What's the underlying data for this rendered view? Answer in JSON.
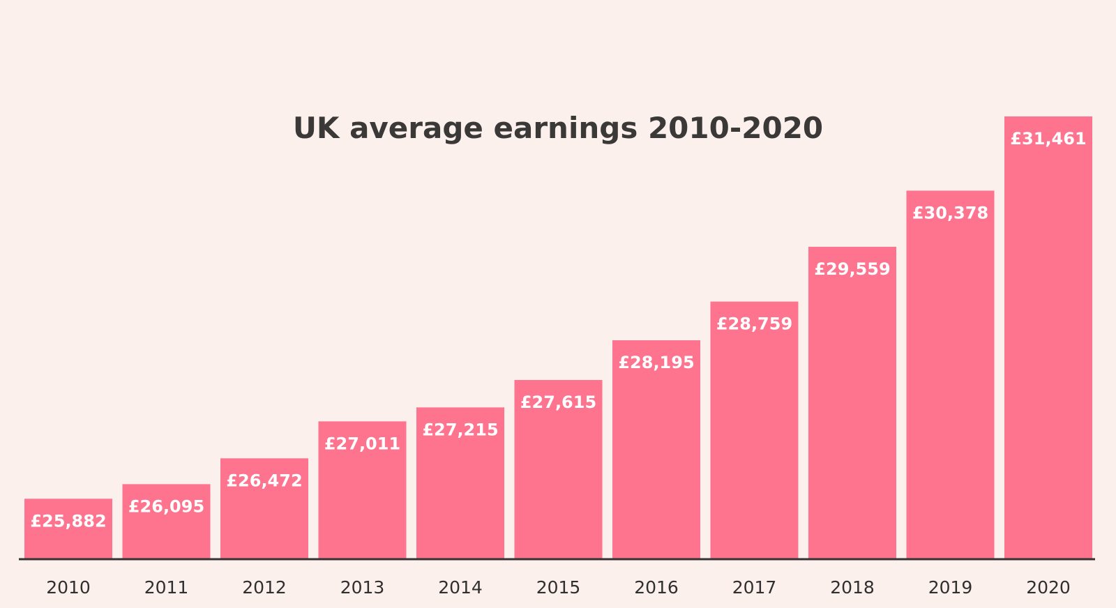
{
  "chart_data": {
    "type": "bar",
    "title": "UK average earnings 2010-2020",
    "xlabel": "",
    "ylabel": "",
    "categories": [
      "2010",
      "2011",
      "2012",
      "2013",
      "2014",
      "2015",
      "2016",
      "2017",
      "2018",
      "2019",
      "2020"
    ],
    "values": [
      25882,
      26095,
      26472,
      27011,
      27215,
      27615,
      28195,
      28759,
      29559,
      30378,
      31461
    ],
    "data_labels": [
      "£25,882",
      "£26,095",
      "£26,472",
      "£27,011",
      "£27,215",
      "£27,615",
      "£28,195",
      "£28,759",
      "£29,559",
      "£30,378",
      "£31,461"
    ],
    "ylim": [
      25000,
      31461
    ],
    "grid": false,
    "legend": "none",
    "colors": {
      "background": "#fcf0ec",
      "bar": "#fe738e",
      "title": "#3b3838",
      "axis": "#333333",
      "tick_label": "#2f2f2f",
      "data_label": "#ffffff"
    }
  }
}
